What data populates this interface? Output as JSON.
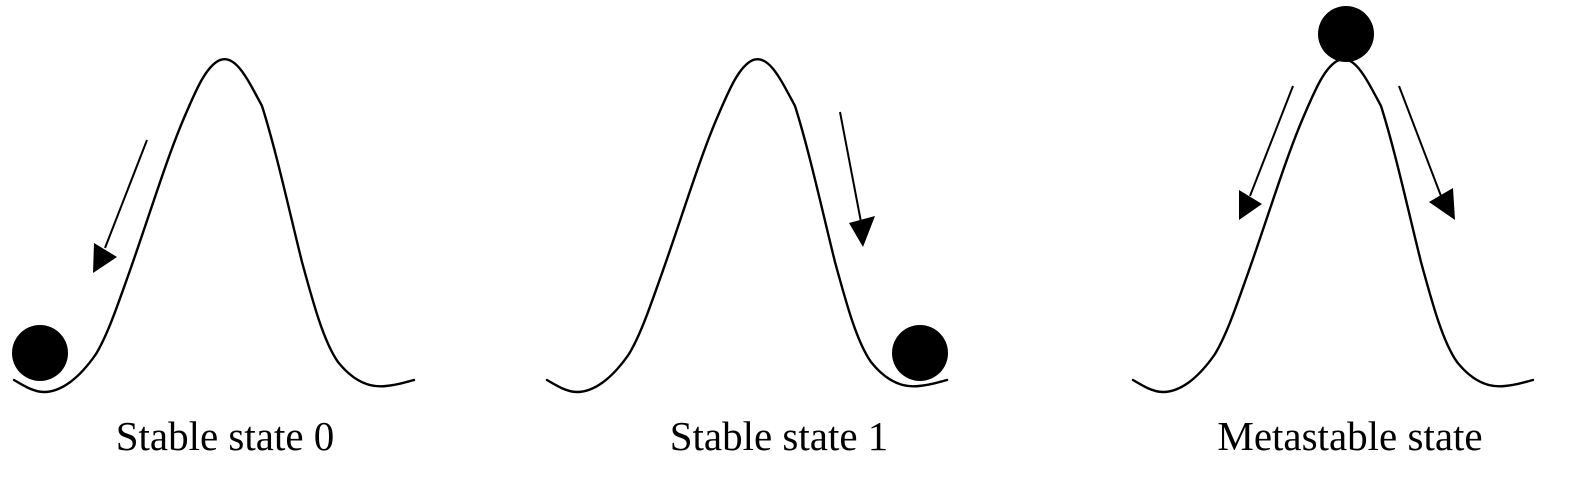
{
  "states": [
    {
      "id": "stable-0",
      "label": "Stable state 0",
      "ball_position": "left-valley",
      "arrows": [
        "down-left-slope"
      ]
    },
    {
      "id": "stable-1",
      "label": "Stable state 1",
      "ball_position": "right-valley",
      "arrows": [
        "down-right-slope"
      ]
    },
    {
      "id": "metastable",
      "label": "Metastable state",
      "ball_position": "peak",
      "arrows": [
        "down-left-slope",
        "down-right-slope"
      ]
    }
  ],
  "colors": {
    "ink": "#000000",
    "background": "#ffffff"
  }
}
